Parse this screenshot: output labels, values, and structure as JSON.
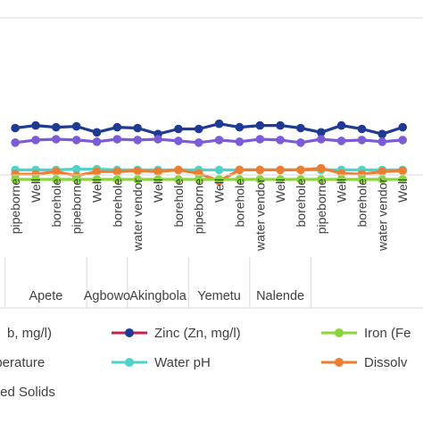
{
  "chart_data": {
    "type": "line",
    "title": "",
    "xlabel": "",
    "ylabel": "",
    "grid": false,
    "legend_position": "bottom",
    "categories": [
      "pipeborne",
      "Well",
      "borehole",
      "pipeborne",
      "Well",
      "borehole",
      "water vendor",
      "Well",
      "borehole",
      "pipeborne",
      "Well",
      "borehole",
      "water vendor",
      "Well",
      "borehole",
      "pipeborne",
      "Well",
      "borehole",
      "water vendor",
      "Well"
    ],
    "groups": [
      {
        "name": "Apete",
        "start": 0,
        "end": 4
      },
      {
        "name": "Agbowo",
        "start": 4,
        "end": 6
      },
      {
        "name": "Akingbola",
        "start": 6,
        "end": 9
      },
      {
        "name": "Yemetu",
        "start": 9,
        "end": 12
      },
      {
        "name": "Nalende",
        "start": 12,
        "end": 15
      }
    ],
    "x_min": -0.75,
    "x_max": 20,
    "y_min": 0,
    "y_max": 470,
    "series": [
      {
        "name": "Zinc (Zn, mg/l)",
        "color": "#1f3a93",
        "values": [
          341,
          344,
          342,
          343,
          336,
          342,
          341,
          334,
          340,
          340,
          346,
          342,
          344,
          344,
          341,
          336,
          344,
          340,
          334,
          342
        ]
      },
      {
        "name": "",
        "color": "#7b5cd6",
        "values": [
          324,
          327,
          328,
          327,
          325,
          328,
          327,
          328,
          326,
          324,
          327,
          325,
          328,
          327,
          324,
          328,
          326,
          327,
          325,
          327
        ]
      },
      {
        "name": "Water pH",
        "color": "#4fd2c9",
        "values": [
          292,
          292,
          292,
          293,
          293,
          292,
          292,
          292,
          292,
          292,
          292,
          292,
          292,
          292,
          292,
          292,
          292,
          292,
          292,
          292
        ]
      },
      {
        "name": "Dissolv",
        "color": "#ed7d31",
        "values": [
          287,
          287,
          290,
          285,
          290,
          290,
          291,
          290,
          292,
          288,
          279,
          292,
          292,
          292,
          292,
          294,
          288,
          287,
          290,
          291
        ]
      },
      {
        "name": "Iron (Fe",
        "color": "#8ad63a",
        "values": [
          281,
          281,
          281,
          281,
          281,
          281,
          281,
          281,
          281,
          281,
          281,
          281,
          281,
          281,
          281,
          281,
          281,
          281,
          281,
          281
        ]
      }
    ],
    "legend": [
      {
        "label": "b, mg/l)",
        "color": "#c00000"
      },
      {
        "label": "Zinc (Zn, mg/l)",
        "color": "#c0234e",
        "dot": "#1f3a93"
      },
      {
        "label": "Iron (Fe",
        "color": "#8ad63a"
      },
      {
        "label": "Temperature",
        "color": ""
      },
      {
        "label": "Water pH",
        "color": "#4fd2c9"
      },
      {
        "label": "Dissolv",
        "color": "#ed7d31"
      },
      {
        "label": "ssolved Solids",
        "color": ""
      }
    ]
  }
}
